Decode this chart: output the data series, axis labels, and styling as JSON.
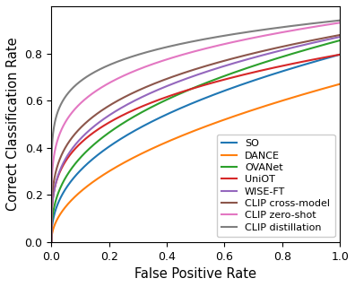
{
  "title": "",
  "xlabel": "False Positive Rate",
  "ylabel": "Correct Classification Rate",
  "xlim": [
    0.0,
    1.0
  ],
  "ylim": [
    0.0,
    1.0
  ],
  "curves": [
    {
      "name": "SO",
      "color": "#1f77b4",
      "end_y": 0.795,
      "power": 0.42
    },
    {
      "name": "DANCE",
      "color": "#ff7f0e",
      "end_y": 0.67,
      "power": 0.5
    },
    {
      "name": "OVANet",
      "color": "#2ca02c",
      "end_y": 0.855,
      "power": 0.38
    },
    {
      "name": "UniOT",
      "color": "#d62728",
      "end_y": 0.795,
      "power": 0.28
    },
    {
      "name": "WISE-FT",
      "color": "#9467bd",
      "end_y": 0.87,
      "power": 0.3
    },
    {
      "name": "CLIP cross-model",
      "color": "#8c564b",
      "end_y": 0.878,
      "power": 0.26
    },
    {
      "name": "CLIP zero-shot",
      "color": "#e377c2",
      "end_y": 0.93,
      "power": 0.2
    },
    {
      "name": "CLIP distillation",
      "color": "#7f7f7f",
      "end_y": 0.94,
      "power": 0.14
    }
  ],
  "legend_fontsize": 8.0,
  "tick_fontsize": 9,
  "label_fontsize": 10.5
}
